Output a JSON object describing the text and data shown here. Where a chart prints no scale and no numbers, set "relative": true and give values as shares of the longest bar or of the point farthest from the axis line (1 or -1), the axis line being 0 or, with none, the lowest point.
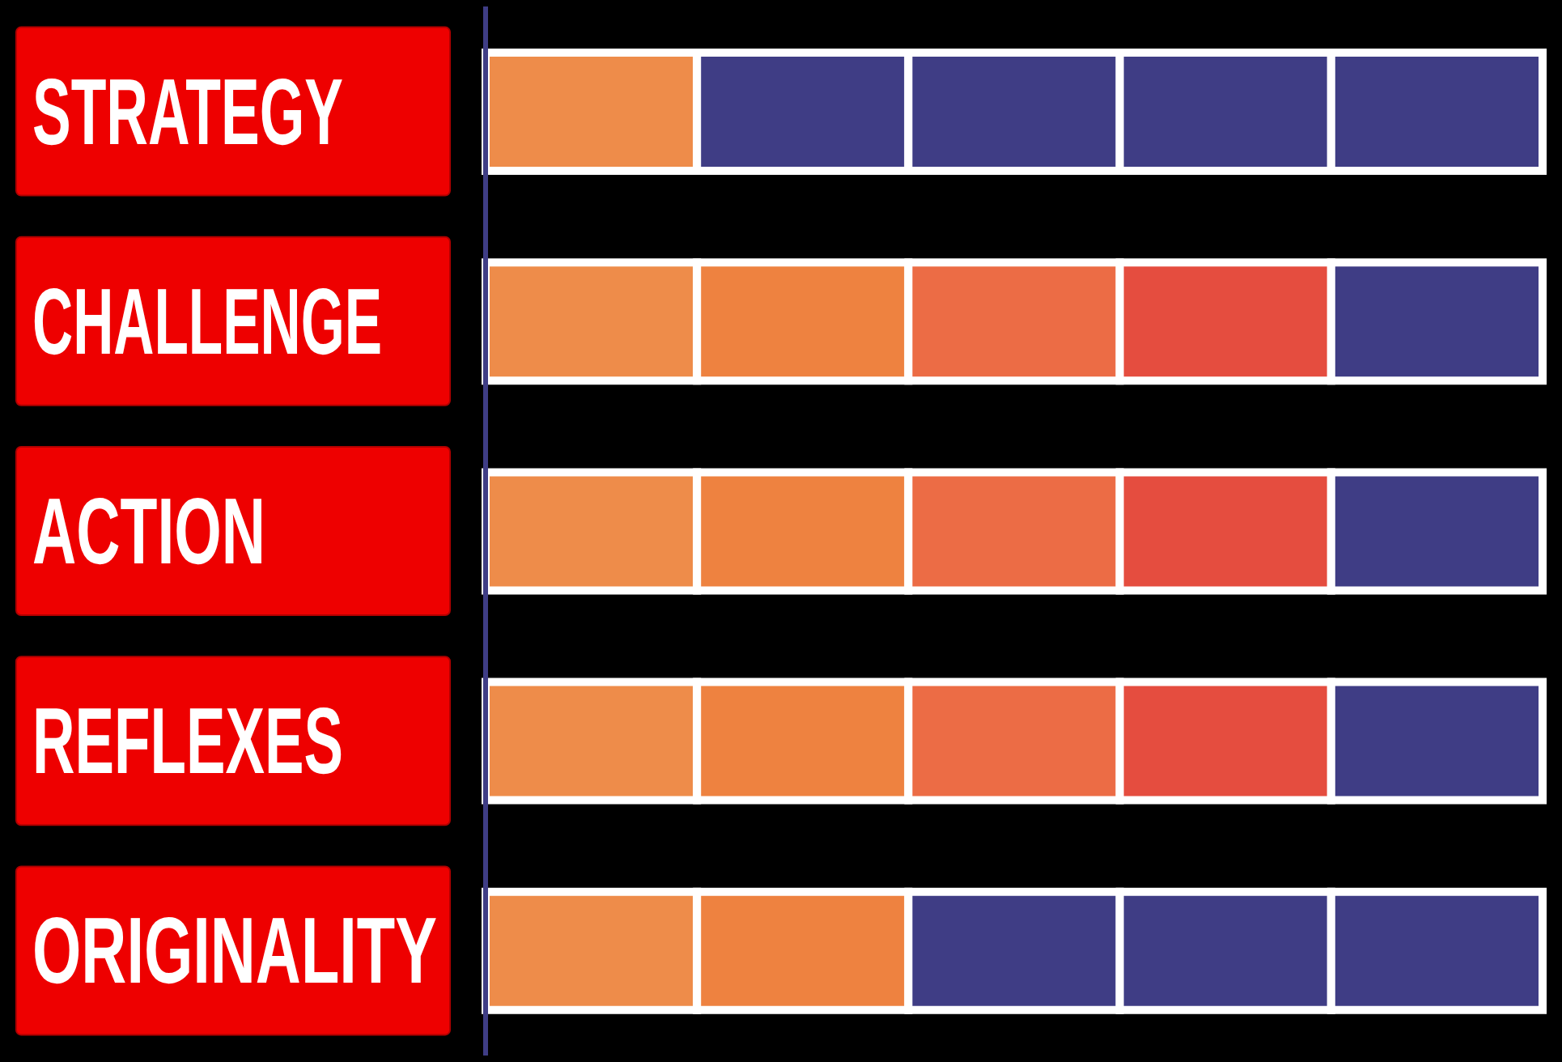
{
  "chart_data": {
    "type": "bar",
    "orientation": "horizontal",
    "stacked": true,
    "relative": true,
    "categories": [
      "STRATEGY",
      "CHALLENGE",
      "ACTION",
      "REFLEXES",
      "ORIGINALITY"
    ],
    "series": [
      {
        "values": [
          0.2,
          0.2,
          0.2,
          0.2,
          0.2
        ],
        "colors": [
          "#ee8c4a",
          "#ee8c4a",
          "#ee8c4a",
          "#ee8c4a",
          "#ee8c4a"
        ]
      },
      {
        "values": [
          0.2,
          0.2,
          0.2,
          0.2,
          0.2
        ],
        "colors": [
          "#3f3d85",
          "#ee8240",
          "#ee8240",
          "#ee8240",
          "#ee8240"
        ]
      },
      {
        "values": [
          0.2,
          0.2,
          0.2,
          0.2,
          0.2
        ],
        "colors": [
          "#3f3d85",
          "#ec6c45",
          "#ec6c45",
          "#ec6c45",
          "#3f3d85"
        ]
      },
      {
        "values": [
          0.2,
          0.2,
          0.2,
          0.2,
          0.2
        ],
        "colors": [
          "#3f3d85",
          "#e54d3f",
          "#e54d3f",
          "#e54d3f",
          "#3f3d85"
        ]
      },
      {
        "values": [
          0.2,
          0.2,
          0.2,
          0.2,
          0.2
        ],
        "colors": [
          "#3f3d85",
          "#3f3d85",
          "#3f3d85",
          "#3f3d85",
          "#3f3d85"
        ]
      }
    ]
  }
}
